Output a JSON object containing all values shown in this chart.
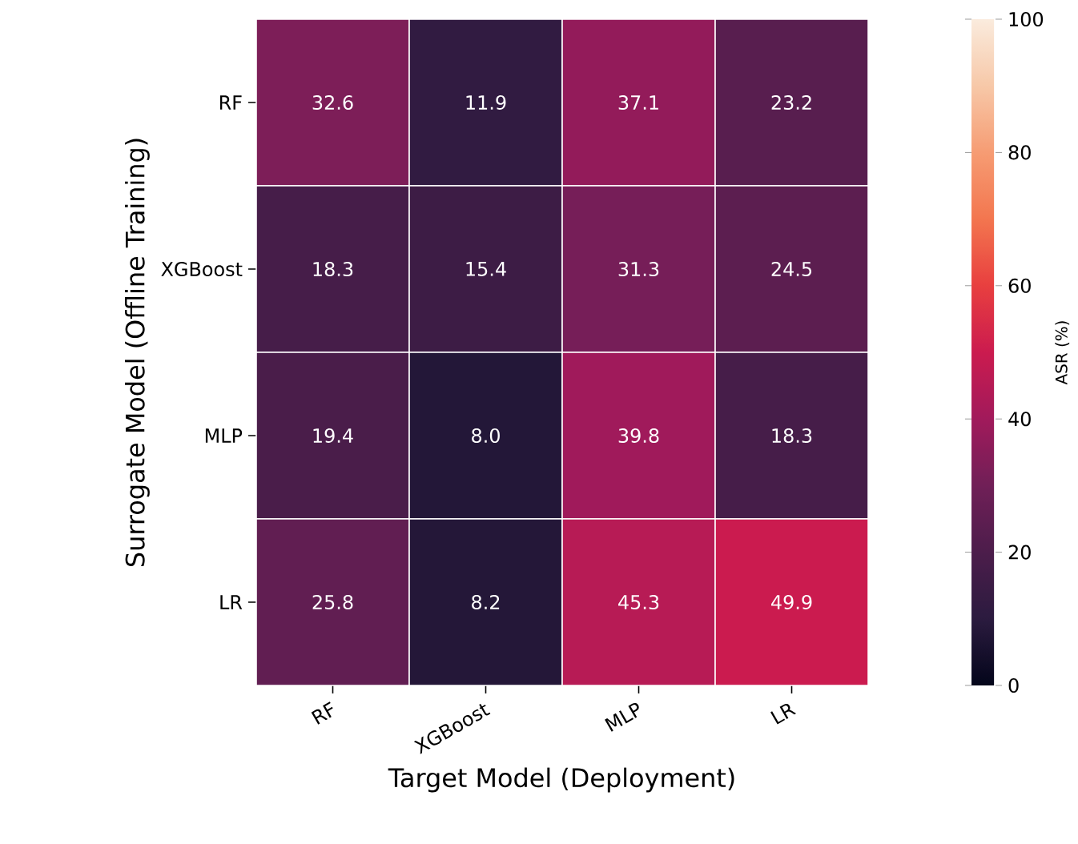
{
  "chart_data": {
    "type": "heatmap",
    "xlabel": "Target Model (Deployment)",
    "ylabel": "Surrogate Model (Offline Training)",
    "clabel": "ASR (%)",
    "categories": [
      "RF",
      "XGBoost",
      "MLP",
      "LR"
    ],
    "y_categories": [
      "RF",
      "XGBoost",
      "MLP",
      "LR"
    ],
    "cells": [
      [
        32.6,
        11.9,
        37.1,
        23.2
      ],
      [
        18.3,
        15.4,
        31.3,
        24.5
      ],
      [
        19.4,
        8.0,
        39.8,
        18.3
      ],
      [
        25.8,
        8.2,
        45.3,
        49.9
      ]
    ],
    "cell_labels": [
      [
        "32.6",
        "11.9",
        "37.1",
        "23.2"
      ],
      [
        "18.3",
        "15.4",
        "31.3",
        "24.5"
      ],
      [
        "19.4",
        "8.0",
        "39.8",
        "18.3"
      ],
      [
        "25.8",
        "8.2",
        "45.3",
        "49.9"
      ]
    ],
    "clim": [
      0,
      100
    ],
    "cticks": [
      0,
      20,
      40,
      60,
      80,
      100
    ]
  }
}
